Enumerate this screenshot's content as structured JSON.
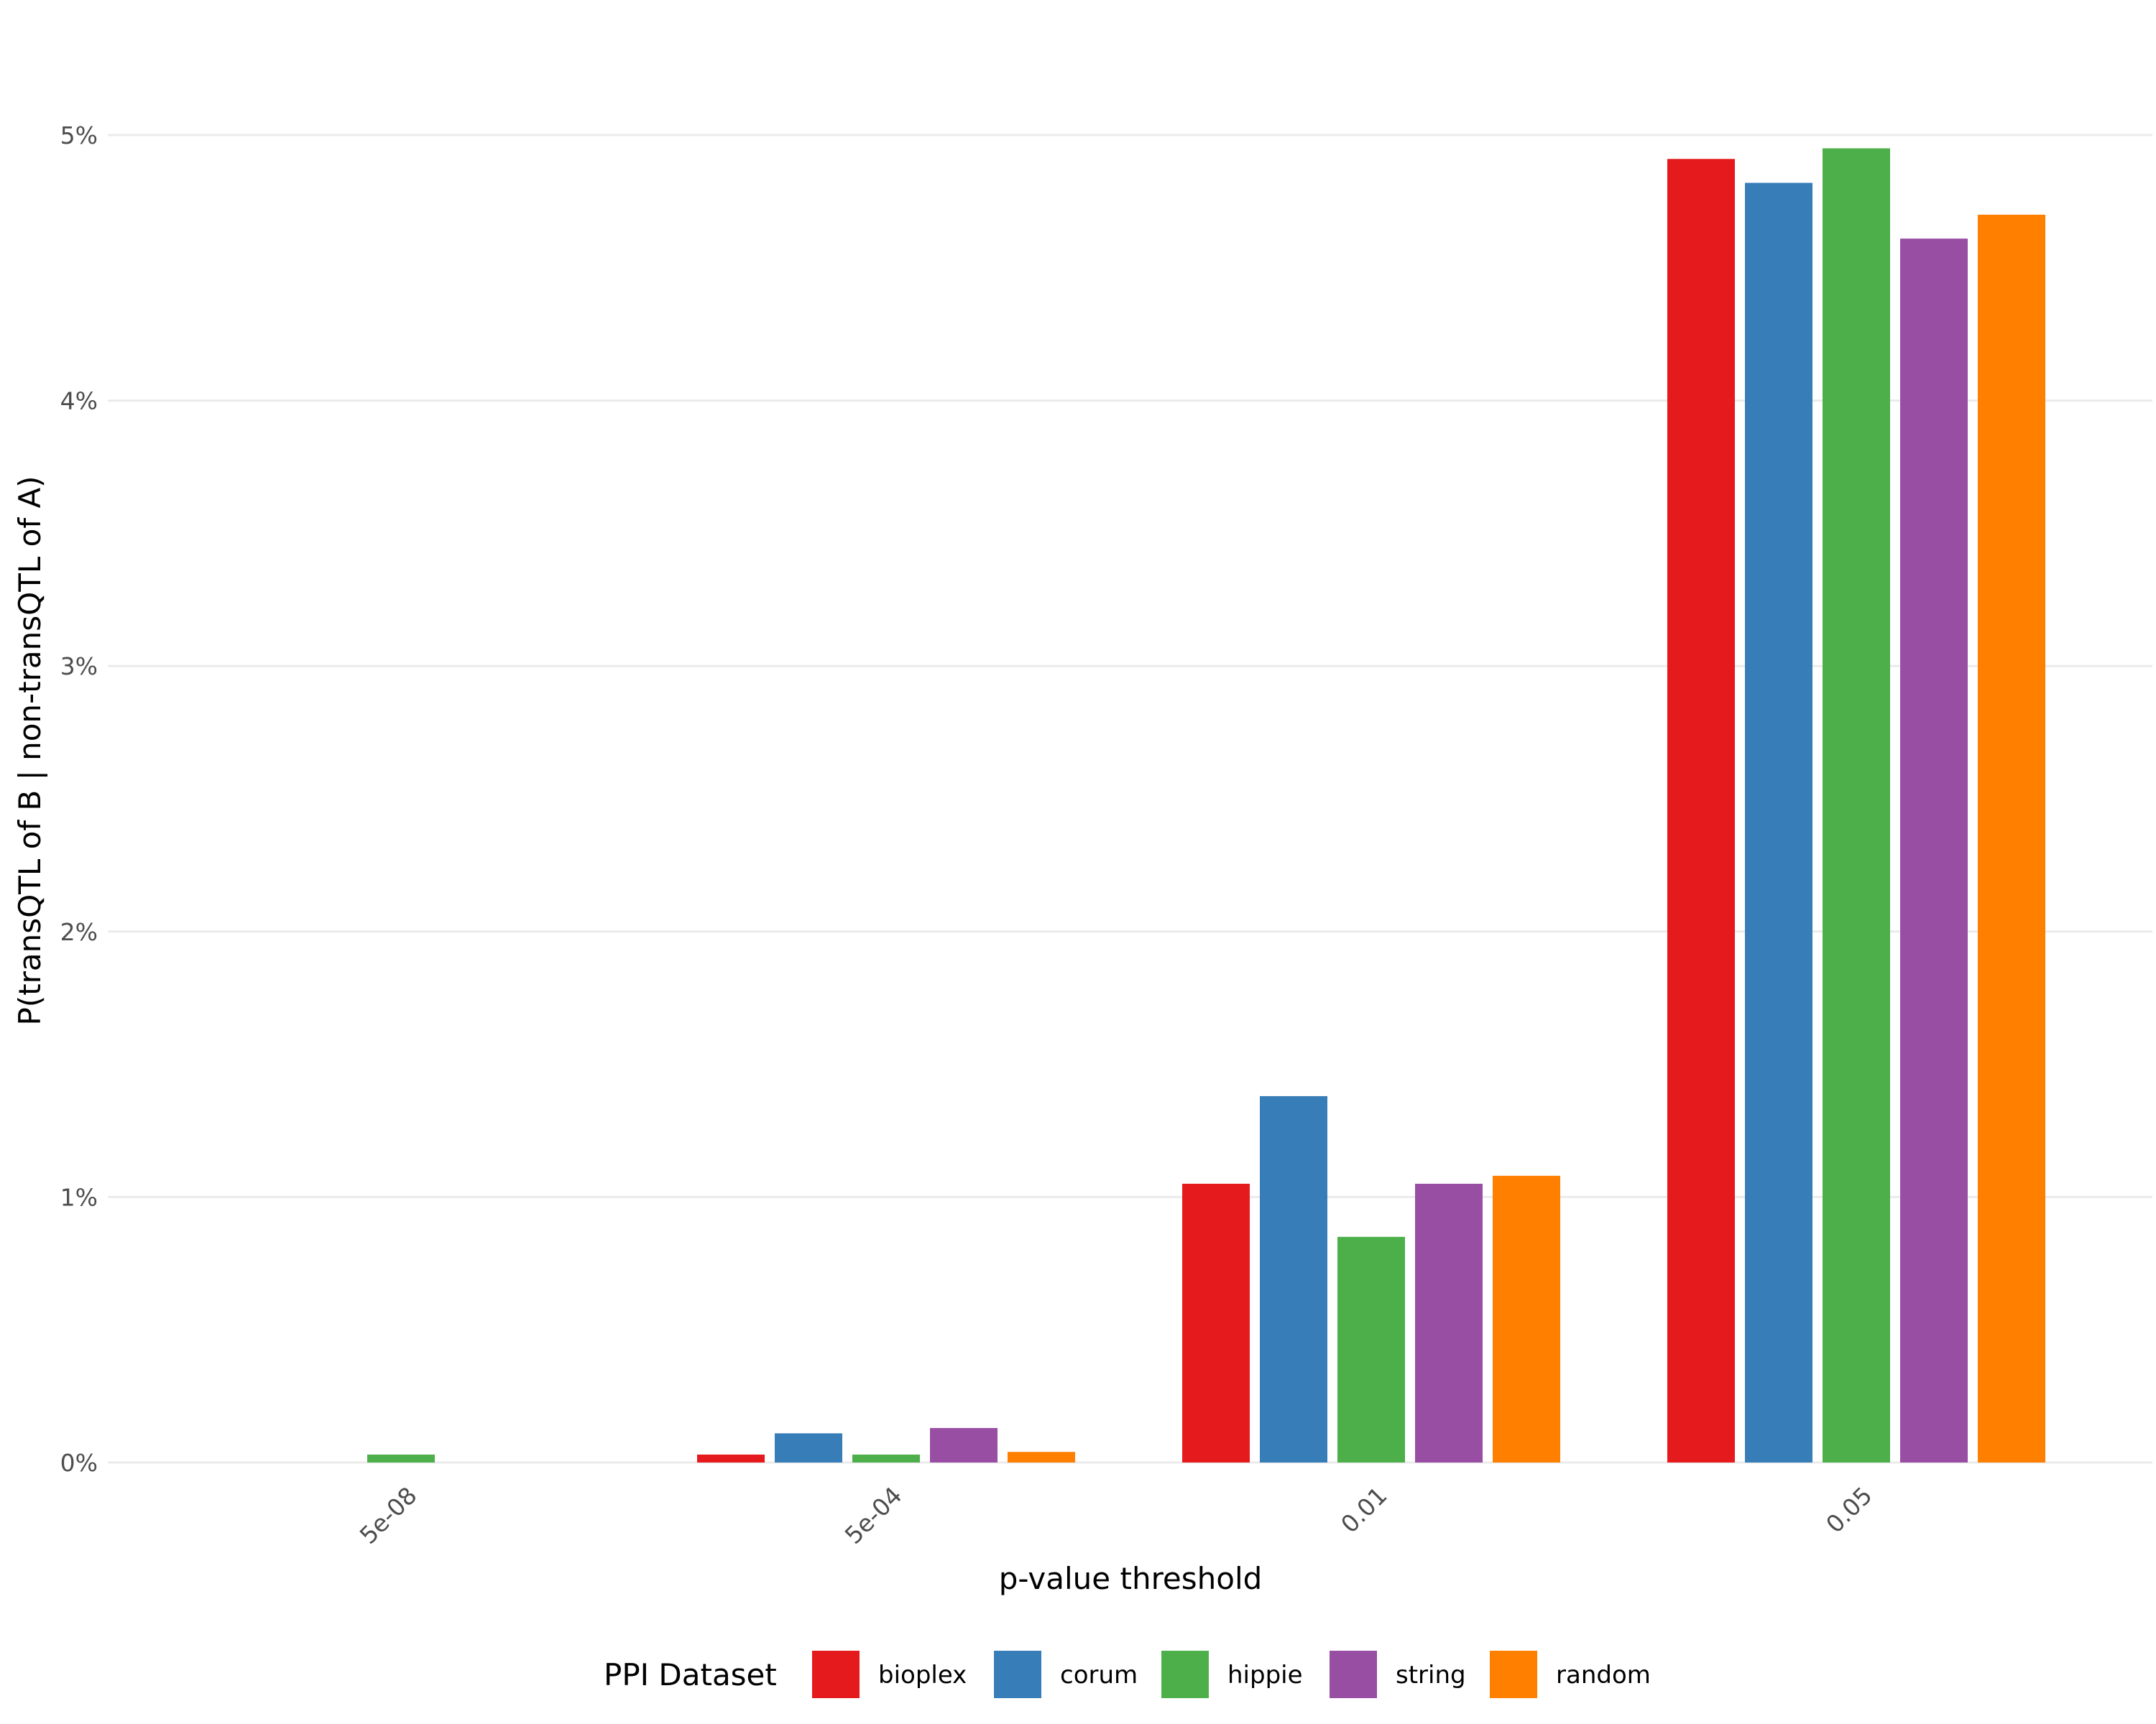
{
  "chart_data": {
    "type": "bar",
    "title": "",
    "xlabel": "p-value threshold",
    "ylabel": "P(transQTL of B | non-transQTL of A)",
    "categories": [
      "5e-08",
      "5e-04",
      "0.01",
      "0.05"
    ],
    "ylim": [
      0,
      5.2
    ],
    "yticks": [
      0,
      1,
      2,
      3,
      4,
      5
    ],
    "ytick_labels": [
      "0%",
      "1%",
      "2%",
      "3%",
      "4%",
      "5%"
    ],
    "grid": "horizontal",
    "legend": {
      "title": "PPI Dataset",
      "placement": "bottom"
    },
    "series": [
      {
        "name": "bioplex",
        "color": "#E41A1C",
        "values": [
          null,
          0.03,
          1.05,
          4.91
        ]
      },
      {
        "name": "corum",
        "color": "#377EB8",
        "values": [
          null,
          0.11,
          1.38,
          4.82
        ]
      },
      {
        "name": "hippie",
        "color": "#4DAF4A",
        "values": [
          0.03,
          0.03,
          0.85,
          4.95
        ]
      },
      {
        "name": "string",
        "color": "#984EA3",
        "values": [
          null,
          0.13,
          1.05,
          4.61
        ]
      },
      {
        "name": "random",
        "color": "#FF7F00",
        "values": [
          null,
          0.04,
          1.08,
          4.7
        ]
      }
    ]
  }
}
